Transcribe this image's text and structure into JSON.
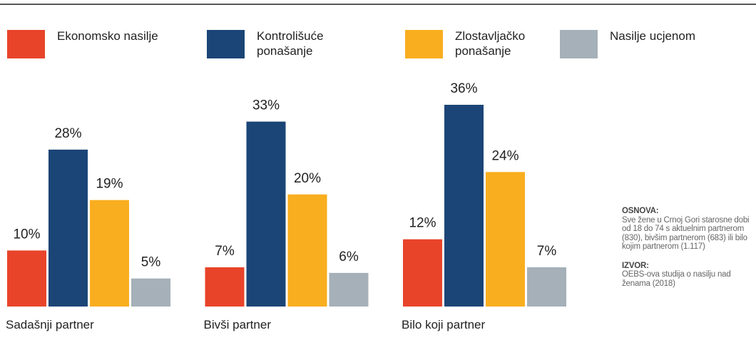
{
  "chart_data": {
    "type": "bar",
    "categories": [
      "Sadašnji partner",
      "Bivši partner",
      "Bilo koji partner"
    ],
    "series": [
      {
        "name": "Ekonomsko nasilje",
        "color": "#e8442a",
        "values": [
          10,
          7,
          12
        ],
        "value_labels": [
          "10%",
          "7%",
          "12%"
        ]
      },
      {
        "name": "Kontrolišuće ponašanje",
        "color": "#1b4577",
        "values": [
          28,
          33,
          36
        ],
        "value_labels": [
          "28%",
          "33%",
          "36%"
        ]
      },
      {
        "name": "Zlostavljačko ponašanje",
        "color": "#f9ae1f",
        "values": [
          19,
          20,
          24
        ],
        "value_labels": [
          "19%",
          "20%",
          "24%"
        ]
      },
      {
        "name": "Nasilje ucjenom",
        "color": "#a5b0b8",
        "values": [
          5,
          6,
          7
        ],
        "value_labels": [
          "5%",
          "6%",
          "7%"
        ]
      }
    ],
    "notes": [
      {
        "heading": "OSNOVA:",
        "text": "Sve žene u Crnoj Gori  starosne dobi od 18 do 74 s aktuelnim partnerom (830), bivšim partnerom (683) ili bilo kojim partnerom (1.117)"
      },
      {
        "heading": "IZVOR:",
        "text": "OEBS-ova studija o nasilju nad ženama (2018)"
      }
    ]
  }
}
